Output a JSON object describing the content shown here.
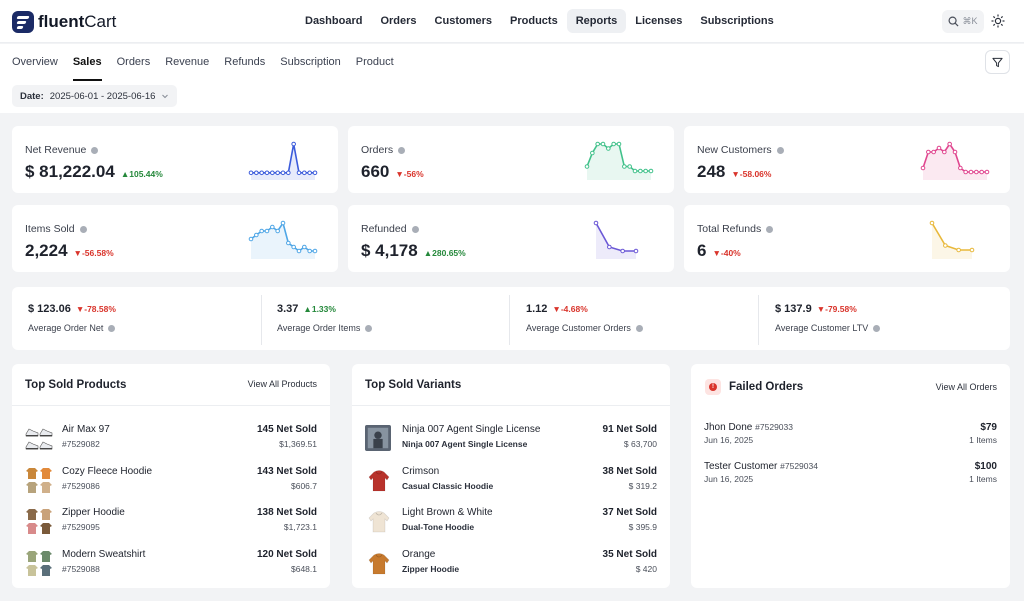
{
  "brand": {
    "name_bold": "fluent",
    "name_rest": "Cart"
  },
  "nav": [
    "Dashboard",
    "Orders",
    "Customers",
    "Products",
    "Reports",
    "Licenses",
    "Subscriptions"
  ],
  "nav_active": "Reports",
  "search": {
    "shortcut": "⌘K"
  },
  "tabs": [
    "Overview",
    "Sales",
    "Orders",
    "Revenue",
    "Refunds",
    "Subscription",
    "Product"
  ],
  "tab_active": "Sales",
  "date": {
    "label": "Date:",
    "range": "2025-06-01 - 2025-06-16"
  },
  "stats": [
    {
      "label": "Net Revenue",
      "value": "$ 81,222.04",
      "delta": "105.44%",
      "dir": "up",
      "color": "#3b5bdb",
      "points": [
        2,
        2,
        2,
        2,
        2,
        2,
        2,
        2,
        10,
        2,
        2,
        2,
        2
      ]
    },
    {
      "label": "Orders",
      "value": "660",
      "delta": "-56%",
      "dir": "down",
      "color": "#40c18a",
      "points": [
        3,
        6,
        8,
        8,
        7,
        8,
        8,
        3,
        3,
        2,
        2,
        2,
        2
      ]
    },
    {
      "label": "New Customers",
      "value": "248",
      "delta": "-58.06%",
      "dir": "down",
      "color": "#e0468f",
      "points": [
        3,
        7,
        7,
        8,
        7,
        9,
        7,
        3,
        2,
        2,
        2,
        2,
        2
      ]
    },
    {
      "label": "Items Sold",
      "value": "2,224",
      "delta": "-56.58%",
      "dir": "down",
      "color": "#4fa6e6",
      "points": [
        5,
        6,
        7,
        7,
        8,
        7,
        9,
        4,
        3,
        2,
        3,
        2,
        2
      ]
    },
    {
      "label": "Refunded",
      "value": "$ 4,178",
      "delta": "280.65%",
      "dir": "up",
      "color": "#6b58d6",
      "points": [
        9,
        3,
        2,
        2
      ]
    },
    {
      "label": "Total Refunds",
      "value": "6",
      "delta": "-40%",
      "dir": "down",
      "color": "#e8b83a",
      "points": [
        8,
        3,
        2,
        2
      ]
    }
  ],
  "minis": [
    {
      "value": "$ 123.06",
      "delta": "-78.58%",
      "dir": "down",
      "label": "Average Order Net"
    },
    {
      "value": "3.37",
      "delta": "1.33%",
      "dir": "up",
      "label": "Average Order Items"
    },
    {
      "value": "1.12",
      "delta": "-4.68%",
      "dir": "down",
      "label": "Average Customer Orders"
    },
    {
      "value": "$ 137.9",
      "delta": "-79.58%",
      "dir": "down",
      "label": "Average Customer LTV"
    }
  ],
  "top_products": {
    "title": "Top Sold Products",
    "link": "View All Products",
    "rows": [
      {
        "name": "Air Max 97",
        "id": "#7529082",
        "sold": "145 Net Sold",
        "amount": "$1,369.51"
      },
      {
        "name": "Cozy Fleece Hoodie",
        "id": "#7529086",
        "sold": "143 Net Sold",
        "amount": "$606.7"
      },
      {
        "name": "Zipper Hoodie",
        "id": "#7529095",
        "sold": "138 Net Sold",
        "amount": "$1,723.1"
      },
      {
        "name": "Modern Sweatshirt",
        "id": "#7529088",
        "sold": "120 Net Sold",
        "amount": "$648.1"
      }
    ]
  },
  "top_variants": {
    "title": "Top Sold Variants",
    "rows": [
      {
        "name": "Ninja 007 Agent Single License",
        "parent": "Ninja 007 Agent Single License",
        "sold": "91 Net Sold",
        "amount": "$ 63,700"
      },
      {
        "name": "Crimson",
        "parent": "Casual Classic Hoodie",
        "sold": "38 Net Sold",
        "amount": "$ 319.2"
      },
      {
        "name": "Light Brown & White",
        "parent": "Dual-Tone Hoodie",
        "sold": "37 Net Sold",
        "amount": "$ 395.9"
      },
      {
        "name": "Orange",
        "parent": "Zipper Hoodie",
        "sold": "35 Net Sold",
        "amount": "$ 420"
      }
    ]
  },
  "failed": {
    "title": "Failed Orders",
    "link": "View All Orders",
    "rows": [
      {
        "name": "Jhon Done",
        "id": "#7529033",
        "date": "Jun 16, 2025",
        "amount": "$79",
        "items": "1 Items"
      },
      {
        "name": "Tester Customer",
        "id": "#7529034",
        "date": "Jun 16, 2025",
        "amount": "$100",
        "items": "1 Items"
      }
    ]
  }
}
